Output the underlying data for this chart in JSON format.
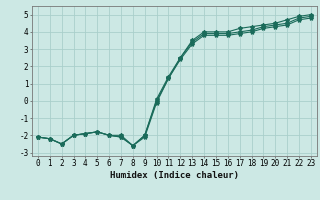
{
  "x": [
    0,
    1,
    2,
    3,
    4,
    5,
    6,
    7,
    8,
    9,
    10,
    11,
    12,
    13,
    14,
    15,
    16,
    17,
    18,
    19,
    20,
    21,
    22,
    23
  ],
  "line1": [
    -2.1,
    -2.2,
    -2.5,
    -2.0,
    -1.9,
    -1.8,
    -2.0,
    -2.0,
    -2.6,
    -2.0,
    0.0,
    1.3,
    2.5,
    3.5,
    4.0,
    4.0,
    4.0,
    4.2,
    4.3,
    4.4,
    4.5,
    4.7,
    4.9,
    5.0
  ],
  "line2": [
    -2.1,
    -2.2,
    -2.5,
    -2.0,
    -1.9,
    -1.8,
    -2.0,
    -2.1,
    -2.6,
    -2.0,
    0.1,
    1.4,
    2.5,
    3.4,
    3.9,
    3.9,
    3.9,
    4.0,
    4.1,
    4.3,
    4.4,
    4.5,
    4.8,
    4.9
  ],
  "line3": [
    -2.1,
    -2.2,
    -2.5,
    -2.0,
    -1.9,
    -1.8,
    -2.0,
    -2.1,
    -2.6,
    -2.1,
    -0.1,
    1.3,
    2.4,
    3.3,
    3.8,
    3.8,
    3.8,
    3.9,
    4.0,
    4.2,
    4.3,
    4.4,
    4.7,
    4.8
  ],
  "bg_color": "#cce8e4",
  "grid_color": "#aacfcb",
  "line_color": "#1a6b5a",
  "xlabel": "Humidex (Indice chaleur)",
  "ylim": [
    -3.2,
    5.5
  ],
  "xlim": [
    -0.5,
    23.5
  ],
  "yticks": [
    -3,
    -2,
    -1,
    0,
    1,
    2,
    3,
    4,
    5
  ],
  "xticks": [
    0,
    1,
    2,
    3,
    4,
    5,
    6,
    7,
    8,
    9,
    10,
    11,
    12,
    13,
    14,
    15,
    16,
    17,
    18,
    19,
    20,
    21,
    22,
    23
  ],
  "tick_fontsize": 5.5,
  "xlabel_fontsize": 6.5,
  "line_width": 0.8,
  "marker_size": 3.0
}
